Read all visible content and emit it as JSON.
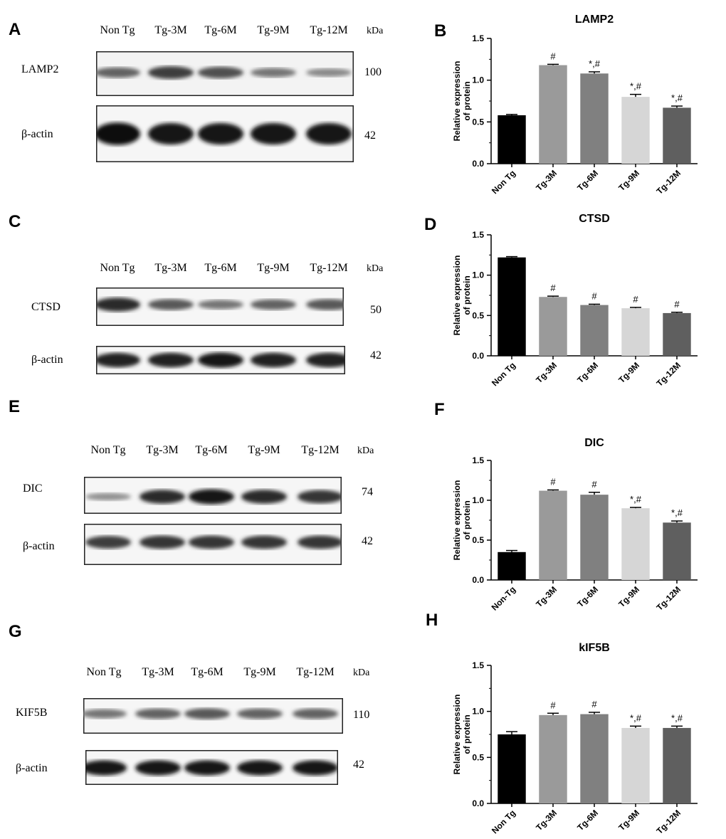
{
  "panels": {
    "a": "A",
    "b": "B",
    "c": "C",
    "d": "D",
    "e": "E",
    "f": "F",
    "g": "G",
    "h": "H"
  },
  "blots": [
    {
      "lanes": [
        "Non Tg",
        "Tg-3M",
        "Tg-6M",
        "Tg-9M",
        "Tg-12M"
      ],
      "kda": "kDa",
      "rows": [
        {
          "label": "LAMP2",
          "mw": "100",
          "intensity": [
            0.55,
            0.75,
            0.65,
            0.45,
            0.35
          ]
        },
        {
          "label": "β-actin",
          "mw": "42",
          "intensity": [
            1,
            0.95,
            0.95,
            0.95,
            0.95
          ]
        }
      ]
    },
    {
      "lanes": [
        "Non Tg",
        "Tg-3M",
        "Tg-6M",
        "Tg-9M",
        "Tg-12M"
      ],
      "kda": "kDa",
      "rows": [
        {
          "label": "CTSD",
          "mw": "50",
          "intensity": [
            0.85,
            0.6,
            0.45,
            0.55,
            0.6
          ]
        },
        {
          "label": "β-actin",
          "mw": "42",
          "intensity": [
            0.9,
            0.9,
            0.95,
            0.9,
            0.9
          ]
        }
      ]
    },
    {
      "lanes": [
        "Non Tg",
        "Tg-3M",
        "Tg-6M",
        "Tg-9M",
        "Tg-12M"
      ],
      "kda": "kDa",
      "rows": [
        {
          "label": "DIC",
          "mw": "74",
          "intensity": [
            0.3,
            0.85,
            0.95,
            0.85,
            0.8
          ]
        },
        {
          "label": "β-actin",
          "mw": "42",
          "intensity": [
            0.75,
            0.8,
            0.8,
            0.8,
            0.8
          ]
        }
      ]
    },
    {
      "lanes": [
        "Non Tg",
        "Tg-3M",
        "Tg-6M",
        "Tg-9M",
        "Tg-12M"
      ],
      "kda": "kDa",
      "rows": [
        {
          "label": "KIF5B",
          "mw": "110",
          "intensity": [
            0.45,
            0.55,
            0.6,
            0.55,
            0.55
          ]
        },
        {
          "label": "β-actin",
          "mw": "42",
          "intensity": [
            0.95,
            0.95,
            0.95,
            0.95,
            0.95
          ]
        }
      ]
    }
  ],
  "chart_data": [
    {
      "type": "bar",
      "title": "LAMP2",
      "ylabel": [
        "Relative expression",
        "of protein"
      ],
      "categories": [
        "Non Tg",
        "Tg-3M",
        "Tg-6M",
        "Tg-9M",
        "Tg-12M"
      ],
      "values": [
        0.58,
        1.18,
        1.08,
        0.8,
        0.67
      ],
      "errors": [
        0.01,
        0.01,
        0.02,
        0.03,
        0.02
      ],
      "annotations": [
        "",
        "#",
        "*,#",
        "*,#",
        "*,#"
      ],
      "ylim": [
        0,
        1.5
      ],
      "yticks": [
        "0.0",
        "0.5",
        "1.0",
        "1.5"
      ],
      "colors": [
        "#000000",
        "#9a9a9a",
        "#808080",
        "#d6d6d6",
        "#5f5f5f"
      ]
    },
    {
      "type": "bar",
      "title": "CTSD",
      "ylabel": [
        "Relative expression",
        "of protein"
      ],
      "categories": [
        "Non Tg",
        "Tg-3M",
        "Tg-6M",
        "Tg-9M",
        "Tg-12M"
      ],
      "values": [
        1.22,
        0.73,
        0.63,
        0.59,
        0.53
      ],
      "errors": [
        0.01,
        0.01,
        0.01,
        0.01,
        0.01
      ],
      "annotations": [
        "",
        "#",
        "#",
        "#",
        "#"
      ],
      "ylim": [
        0,
        1.5
      ],
      "yticks": [
        "0.0",
        "0.5",
        "1.0",
        "1.5"
      ],
      "colors": [
        "#000000",
        "#9a9a9a",
        "#808080",
        "#d6d6d6",
        "#5f5f5f"
      ]
    },
    {
      "type": "bar",
      "title": "DIC",
      "ylabel": [
        "Relative expression",
        "of protein"
      ],
      "categories": [
        "Non-Tg",
        "Tg-3M",
        "Tg-6M",
        "Tg-9M",
        "Tg-12M"
      ],
      "values": [
        0.35,
        1.12,
        1.07,
        0.9,
        0.72
      ],
      "errors": [
        0.02,
        0.01,
        0.03,
        0.01,
        0.02
      ],
      "annotations": [
        "",
        "#",
        "#",
        "*,#",
        "*,#"
      ],
      "ylim": [
        0,
        1.5
      ],
      "yticks": [
        "0.0",
        "0.5",
        "1.0",
        "1.5"
      ],
      "colors": [
        "#000000",
        "#9a9a9a",
        "#808080",
        "#d6d6d6",
        "#5f5f5f"
      ]
    },
    {
      "type": "bar",
      "title": "kIF5B",
      "ylabel": [
        "Relative expression",
        "of protein"
      ],
      "categories": [
        "Non Tg",
        "Tg-3M",
        "Tg-6M",
        "Tg-9M",
        "Tg-12M"
      ],
      "values": [
        0.75,
        0.96,
        0.97,
        0.82,
        0.82
      ],
      "errors": [
        0.03,
        0.02,
        0.02,
        0.02,
        0.02
      ],
      "annotations": [
        "",
        "#",
        "#",
        "*,#",
        "*,#"
      ],
      "ylim": [
        0,
        1.5
      ],
      "yticks": [
        "0.0",
        "0.5",
        "1.0",
        "1.5"
      ],
      "colors": [
        "#000000",
        "#9a9a9a",
        "#808080",
        "#d6d6d6",
        "#5f5f5f"
      ]
    }
  ]
}
